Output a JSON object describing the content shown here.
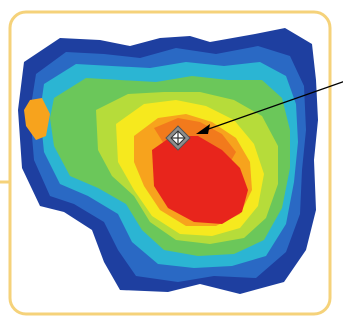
{
  "frame": {
    "border_color": "#F5D27A",
    "leader_line_color": "#F5D27A"
  },
  "contour_map": {
    "colors": {
      "outer": "#1E3FA0",
      "mid_blue": "#2A69C4",
      "cyan": "#2BB5D3",
      "green": "#6BC75A",
      "yellow_green": "#B6DC3A",
      "yellow": "#F6E91E",
      "orange": "#F7A31D",
      "dark_orange": "#F27A1C",
      "red": "#E8251C"
    },
    "icons": {
      "marker": "grey-diamond-crosshair-icon",
      "side_spot": "orange-hexagon-spot"
    }
  },
  "annotation": {
    "arrow_color": "#000000",
    "arrow_icon": "arrow-pointer-icon"
  }
}
